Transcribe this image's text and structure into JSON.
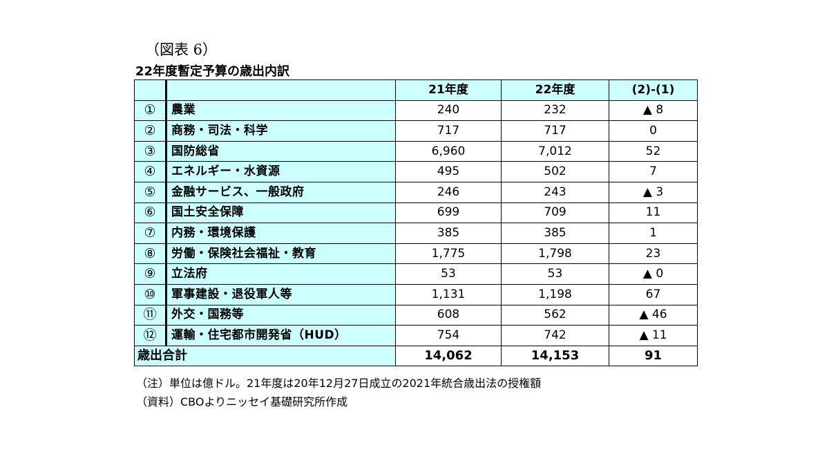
{
  "figure_label": "（図表 6）",
  "title": "22年度暫定予算の歳出内訳",
  "headers": {
    "col_21": "21年度",
    "col_22": "22年度",
    "col_diff": "(2)-(1)"
  },
  "rows": [
    {
      "num": "①",
      "name": "農業",
      "v21": "240",
      "v22": "232",
      "diff": "▲ 8"
    },
    {
      "num": "②",
      "name": "商務・司法・科学",
      "v21": "717",
      "v22": "717",
      "diff": "0"
    },
    {
      "num": "③",
      "name": "国防総省",
      "v21": "6,960",
      "v22": "7,012",
      "diff": "52"
    },
    {
      "num": "④",
      "name": "エネルギー・水資源",
      "v21": "495",
      "v22": "502",
      "diff": "7"
    },
    {
      "num": "⑤",
      "name": "金融サービス、一般政府",
      "v21": "246",
      "v22": "243",
      "diff": "▲ 3"
    },
    {
      "num": "⑥",
      "name": "国土安全保障",
      "v21": "699",
      "v22": "709",
      "diff": "11"
    },
    {
      "num": "⑦",
      "name": "内務・環境保護",
      "v21": "385",
      "v22": "385",
      "diff": "1"
    },
    {
      "num": "⑧",
      "name": "労働・保険社会福祉・教育",
      "v21": "1,775",
      "v22": "1,798",
      "diff": "23"
    },
    {
      "num": "⑨",
      "name": "立法府",
      "v21": "53",
      "v22": "53",
      "diff": "▲ 0"
    },
    {
      "num": "⑩",
      "name": "軍事建設・退役軍人等",
      "v21": "1,131",
      "v22": "1,198",
      "diff": "67"
    },
    {
      "num": "⑪",
      "name": "外交・国務等",
      "v21": "608",
      "v22": "562",
      "diff": "▲ 46"
    },
    {
      "num": "⑫",
      "name": "運輸・住宅都市開発省（HUD）",
      "v21": "754",
      "v22": "742",
      "diff": "▲ 11"
    }
  ],
  "total": {
    "label": "歳出合計",
    "v21": "14,062",
    "v22": "14,153",
    "diff": "91"
  },
  "notes": [
    "（注）単位は億ドル。21年度は20年12月27日成立の2021年統合歳出法の授権額",
    "（資料）CBOよりニッセイ基礎研究所作成"
  ],
  "colors": {
    "header_fill": "#ccffff",
    "border": "#000000"
  }
}
